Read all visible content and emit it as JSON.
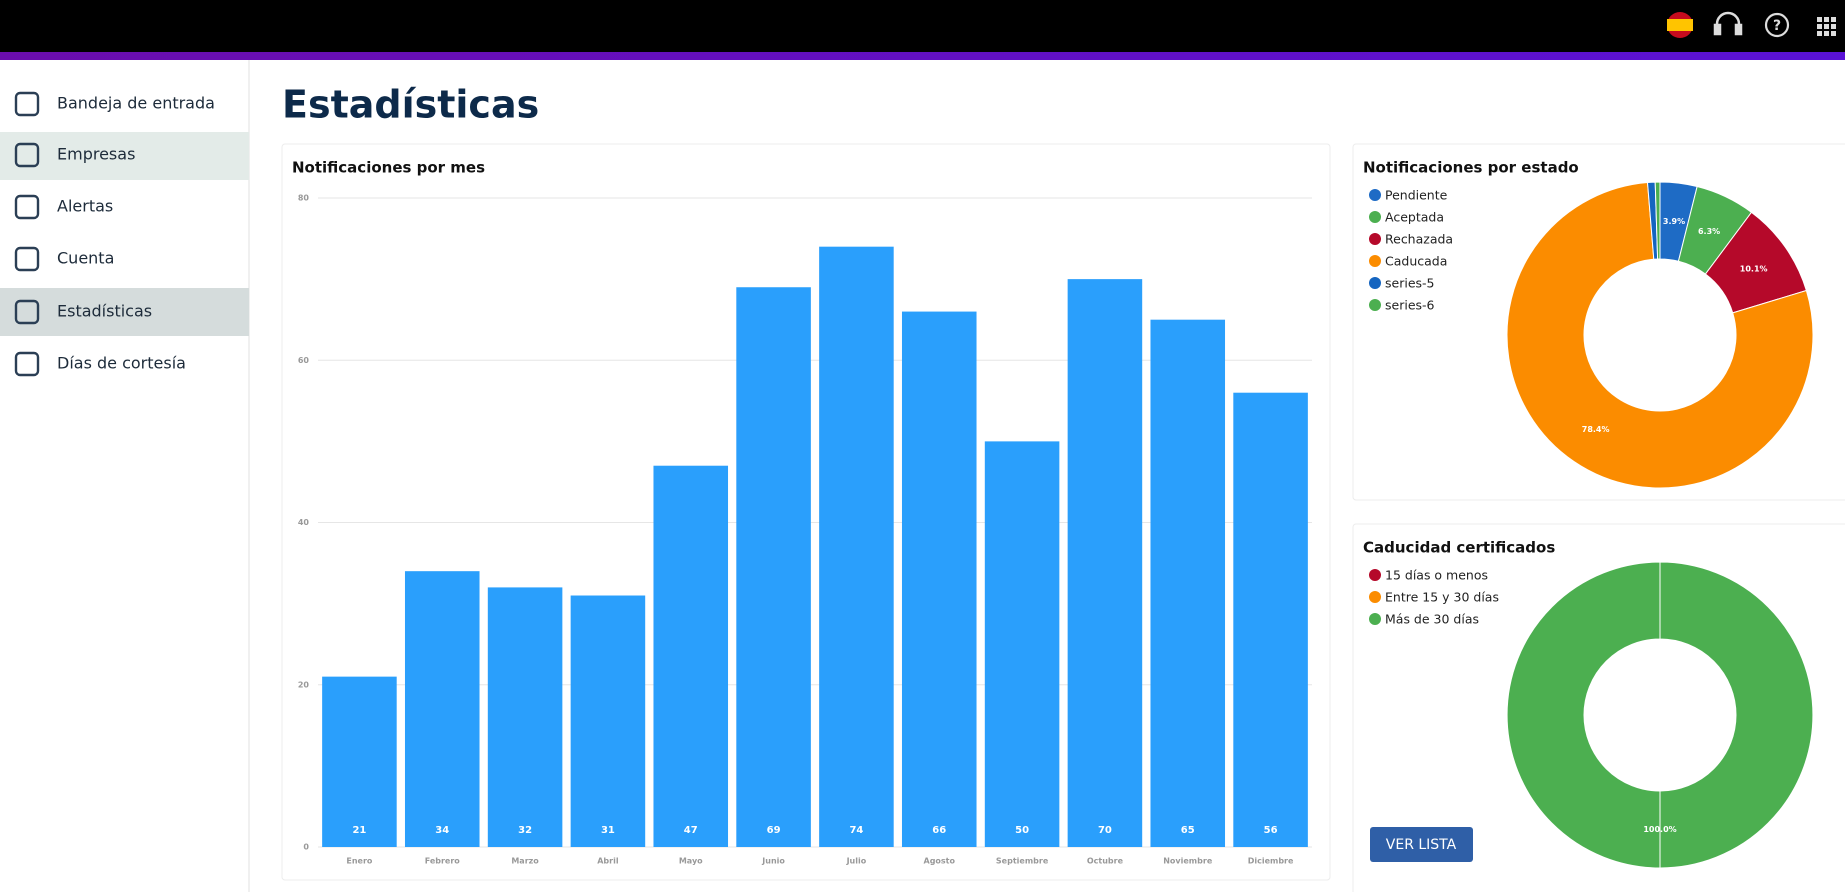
{
  "nav": [
    "Bandeja de entrada",
    "Empresas",
    "Alertas",
    "Cuenta",
    "Estadísticas",
    "Días de cortesía"
  ],
  "page_title": "Estadísticas",
  "button": "VER LISTA",
  "chart_data": [
    {
      "type": "bar",
      "title": "Notificaciones por mes",
      "categories": [
        "Enero",
        "Febrero",
        "Marzo",
        "Abril",
        "Mayo",
        "Junio",
        "Julio",
        "Agosto",
        "Septiembre",
        "Octubre",
        "Noviembre",
        "Diciembre"
      ],
      "values": [
        21,
        34,
        32,
        31,
        47,
        69,
        74,
        66,
        50,
        70,
        65,
        56
      ],
      "color": "#2a9ffc",
      "ylim": [
        0,
        80
      ],
      "yticks": [
        0,
        20,
        40,
        60,
        80
      ],
      "grid": true
    },
    {
      "type": "pie",
      "title": "Notificaciones por estado",
      "categories": [
        "Pendiente",
        "Aceptada",
        "Rechazada",
        "Caducada",
        "series-5",
        "series-6"
      ],
      "values": [
        3.9,
        6.3,
        10.1,
        78.4,
        0.8,
        0.5
      ],
      "value_labels": [
        "3.9%",
        "6.3%",
        "10.1%",
        "78.4%",
        null,
        null
      ],
      "colors": [
        "#1e6bc5",
        "#4caf50",
        "#b5092a",
        "#fb8c00",
        "#1565c0",
        "#4caf50"
      ]
    },
    {
      "type": "pie",
      "title": "Caducidad certificados",
      "categories": [
        "15 días o menos",
        "Entre 15 y 30 días",
        "Más de 30 días"
      ],
      "values": [
        0,
        0,
        100
      ],
      "value_labels": [
        null,
        null,
        "100.0%"
      ],
      "colors": [
        "#b5092a",
        "#fb8c00",
        "#4caf50"
      ]
    }
  ]
}
